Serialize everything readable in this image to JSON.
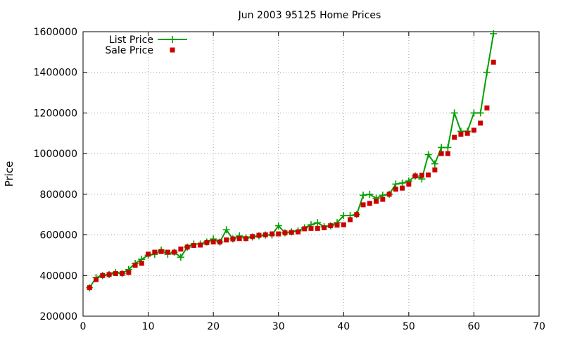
{
  "chart_data": {
    "type": "line",
    "title": "Jun 2003 95125 Home Prices",
    "xlabel": "",
    "ylabel": "Price",
    "xlim": [
      0,
      70
    ],
    "ylim": [
      200000,
      1600000
    ],
    "xticks": [
      0,
      10,
      20,
      30,
      40,
      50,
      60,
      70
    ],
    "yticks": [
      200000,
      400000,
      600000,
      800000,
      1000000,
      1200000,
      1400000,
      1600000
    ],
    "grid": true,
    "legend_position": "top-left",
    "x": [
      1,
      2,
      3,
      4,
      5,
      6,
      7,
      8,
      9,
      10,
      11,
      12,
      13,
      14,
      15,
      16,
      17,
      18,
      19,
      20,
      21,
      22,
      23,
      24,
      25,
      26,
      27,
      28,
      29,
      30,
      31,
      32,
      33,
      34,
      35,
      36,
      37,
      38,
      39,
      40,
      41,
      42,
      43,
      44,
      45,
      46,
      47,
      48,
      49,
      50,
      51,
      52,
      53,
      54,
      55,
      56,
      57,
      58,
      59,
      60,
      61,
      62,
      63
    ],
    "series": [
      {
        "name": "List Price",
        "style": "line-plus",
        "color": "#00a000",
        "values": [
          340000,
          390000,
          400000,
          405000,
          415000,
          410000,
          430000,
          460000,
          480000,
          500000,
          505000,
          525000,
          505000,
          515000,
          490000,
          540000,
          555000,
          555000,
          565000,
          580000,
          565000,
          625000,
          580000,
          595000,
          585000,
          590000,
          595000,
          600000,
          600000,
          645000,
          610000,
          615000,
          620000,
          635000,
          650000,
          660000,
          640000,
          645000,
          660000,
          695000,
          695000,
          700000,
          795000,
          800000,
          780000,
          795000,
          800000,
          850000,
          855000,
          865000,
          890000,
          875000,
          995000,
          950000,
          1030000,
          1030000,
          1200000,
          1110000,
          1110000,
          1200000,
          1200000,
          1400000,
          1590000
        ]
      },
      {
        "name": "Sale Price",
        "style": "square-points",
        "color": "#cc0000",
        "values": [
          340000,
          380000,
          400000,
          405000,
          410000,
          410000,
          415000,
          450000,
          460000,
          505000,
          515000,
          518000,
          515000,
          515000,
          530000,
          540000,
          548000,
          550000,
          562000,
          565000,
          565000,
          575000,
          580000,
          582000,
          582000,
          592000,
          598000,
          600000,
          605000,
          605000,
          610000,
          612000,
          615000,
          630000,
          632000,
          632000,
          635000,
          645000,
          648000,
          650000,
          675000,
          700000,
          748000,
          755000,
          765000,
          775000,
          800000,
          825000,
          830000,
          850000,
          890000,
          893000,
          895000,
          920000,
          1000000,
          1000000,
          1080000,
          1095000,
          1100000,
          1115000,
          1150000,
          1225000,
          1450000
        ]
      }
    ]
  }
}
